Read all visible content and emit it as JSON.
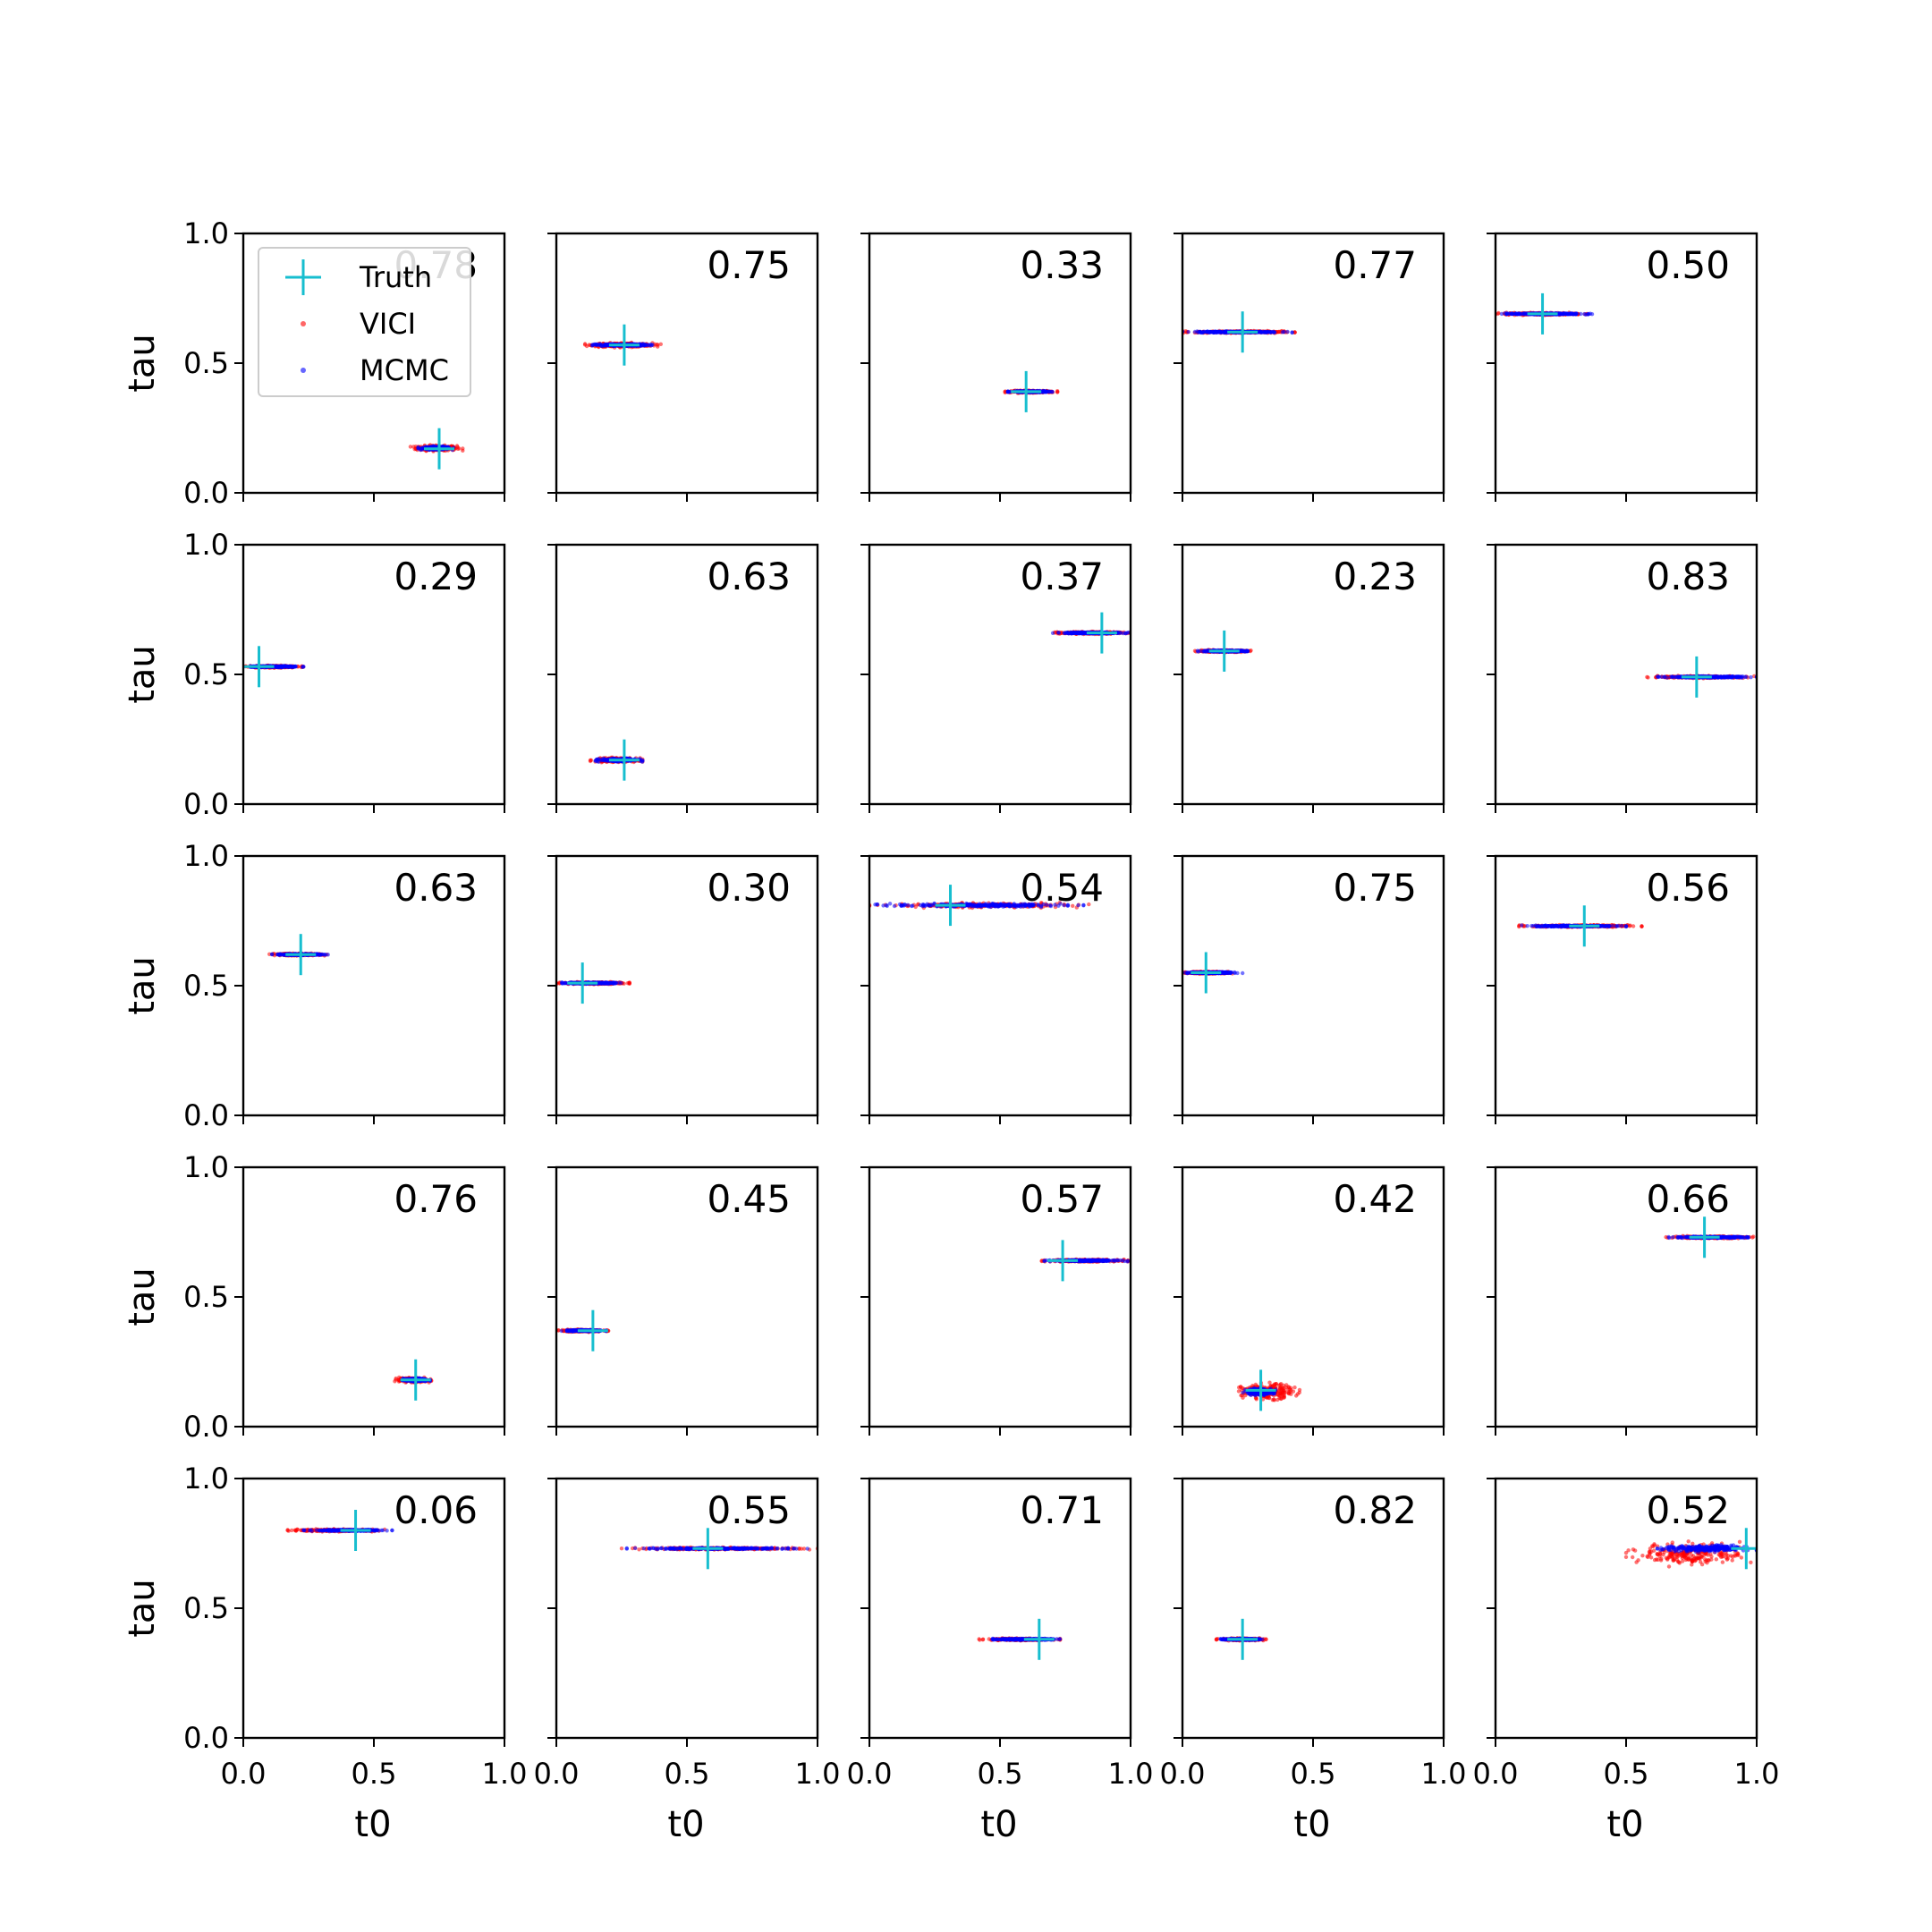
{
  "figure": {
    "xlabel": "t0",
    "ylabel": "tau",
    "xticks": [
      "0.0",
      "0.5",
      "1.0"
    ],
    "yticks": [
      "0.0",
      "0.5",
      "1.0"
    ],
    "xlim": [
      0,
      1
    ],
    "ylim": [
      0,
      1
    ]
  },
  "legend": {
    "placement": "upper-left of first panel",
    "entries": [
      {
        "label": "Truth",
        "marker": "plus",
        "color": "#17becf"
      },
      {
        "label": "VICI",
        "marker": "dot",
        "color": "#ff0000"
      },
      {
        "label": "MCMC",
        "marker": "dot",
        "color": "#0000ff"
      }
    ]
  },
  "colors": {
    "truth": "#17becf",
    "vici": "#ff0000",
    "mcmc": "#0000ff"
  },
  "chart_data": {
    "type": "scatter",
    "grid": "5x5 small multiples",
    "shared_axes": true,
    "xlabel": "t0",
    "ylabel": "tau",
    "xlim": [
      0,
      1
    ],
    "ylim": [
      0,
      1
    ],
    "grid_lines": false,
    "series_names": [
      "Truth",
      "VICI",
      "MCMC"
    ],
    "panels": [
      {
        "annotation": "0.78",
        "truth": [
          0.75,
          0.17
        ],
        "vici": {
          "x": [
            0.64,
            0.84
          ],
          "y": [
            0.16,
            0.185
          ]
        },
        "mcmc": {
          "x": [
            0.67,
            0.81
          ],
          "y": [
            0.165,
            0.18
          ]
        }
      },
      {
        "annotation": "0.75",
        "truth": [
          0.26,
          0.57
        ],
        "vici": {
          "x": [
            0.11,
            0.4
          ],
          "y": [
            0.56,
            0.58
          ]
        },
        "mcmc": {
          "x": [
            0.12,
            0.38
          ],
          "y": [
            0.565,
            0.575
          ]
        }
      },
      {
        "annotation": "0.33",
        "truth": [
          0.6,
          0.39
        ],
        "vici": {
          "x": [
            0.52,
            0.72
          ],
          "y": [
            0.385,
            0.395
          ]
        },
        "mcmc": {
          "x": [
            0.53,
            0.7
          ],
          "y": [
            0.387,
            0.393
          ]
        }
      },
      {
        "annotation": "0.77",
        "truth": [
          0.23,
          0.62
        ],
        "vici": {
          "x": [
            0.0,
            0.43
          ],
          "y": [
            0.615,
            0.625
          ]
        },
        "mcmc": {
          "x": [
            0.0,
            0.42
          ],
          "y": [
            0.617,
            0.623
          ]
        }
      },
      {
        "annotation": "0.50",
        "truth": [
          0.18,
          0.69
        ],
        "vici": {
          "x": [
            0.0,
            0.35
          ],
          "y": [
            0.685,
            0.695
          ]
        },
        "mcmc": {
          "x": [
            0.0,
            0.37
          ],
          "y": [
            0.687,
            0.693
          ]
        }
      },
      {
        "annotation": "0.29",
        "truth": [
          0.06,
          0.53
        ],
        "vici": {
          "x": [
            0.0,
            0.23
          ],
          "y": [
            0.525,
            0.535
          ]
        },
        "mcmc": {
          "x": [
            0.0,
            0.24
          ],
          "y": [
            0.527,
            0.533
          ]
        }
      },
      {
        "annotation": "0.63",
        "truth": [
          0.26,
          0.17
        ],
        "vici": {
          "x": [
            0.13,
            0.33
          ],
          "y": [
            0.16,
            0.18
          ]
        },
        "mcmc": {
          "x": [
            0.15,
            0.33
          ],
          "y": [
            0.163,
            0.177
          ]
        }
      },
      {
        "annotation": "0.37",
        "truth": [
          0.89,
          0.66
        ],
        "vici": {
          "x": [
            0.69,
            1.0
          ],
          "y": [
            0.655,
            0.665
          ]
        },
        "mcmc": {
          "x": [
            0.7,
            1.0
          ],
          "y": [
            0.657,
            0.663
          ]
        }
      },
      {
        "annotation": "0.23",
        "truth": [
          0.16,
          0.59
        ],
        "vici": {
          "x": [
            0.04,
            0.27
          ],
          "y": [
            0.585,
            0.595
          ]
        },
        "mcmc": {
          "x": [
            0.05,
            0.27
          ],
          "y": [
            0.587,
            0.593
          ]
        }
      },
      {
        "annotation": "0.83",
        "truth": [
          0.77,
          0.49
        ],
        "vici": {
          "x": [
            0.58,
            1.0
          ],
          "y": [
            0.485,
            0.495
          ]
        },
        "mcmc": {
          "x": [
            0.62,
            1.0
          ],
          "y": [
            0.487,
            0.493
          ]
        }
      },
      {
        "annotation": "0.63",
        "truth": [
          0.22,
          0.62
        ],
        "vici": {
          "x": [
            0.1,
            0.32
          ],
          "y": [
            0.615,
            0.625
          ]
        },
        "mcmc": {
          "x": [
            0.11,
            0.33
          ],
          "y": [
            0.617,
            0.623
          ]
        }
      },
      {
        "annotation": "0.30",
        "truth": [
          0.1,
          0.51
        ],
        "vici": {
          "x": [
            0.0,
            0.28
          ],
          "y": [
            0.505,
            0.515
          ]
        },
        "mcmc": {
          "x": [
            0.01,
            0.25
          ],
          "y": [
            0.507,
            0.513
          ]
        }
      },
      {
        "annotation": "0.54",
        "truth": [
          0.31,
          0.81
        ],
        "vici": {
          "x": [
            0.0,
            0.84
          ],
          "y": [
            0.8,
            0.82
          ]
        },
        "mcmc": {
          "x": [
            0.0,
            0.82
          ],
          "y": [
            0.803,
            0.817
          ]
        }
      },
      {
        "annotation": "0.75",
        "truth": [
          0.09,
          0.55
        ],
        "vici": {
          "x": [
            0.0,
            0.2
          ],
          "y": [
            0.545,
            0.555
          ]
        },
        "mcmc": {
          "x": [
            0.0,
            0.23
          ],
          "y": [
            0.547,
            0.553
          ]
        }
      },
      {
        "annotation": "0.56",
        "truth": [
          0.34,
          0.73
        ],
        "vici": {
          "x": [
            0.09,
            0.56
          ],
          "y": [
            0.725,
            0.735
          ]
        },
        "mcmc": {
          "x": [
            0.1,
            0.5
          ],
          "y": [
            0.727,
            0.733
          ]
        }
      },
      {
        "annotation": "0.76",
        "truth": [
          0.66,
          0.18
        ],
        "vici": {
          "x": [
            0.58,
            0.72
          ],
          "y": [
            0.17,
            0.19
          ]
        },
        "mcmc": {
          "x": [
            0.6,
            0.72
          ],
          "y": [
            0.173,
            0.187
          ]
        }
      },
      {
        "annotation": "0.45",
        "truth": [
          0.14,
          0.37
        ],
        "vici": {
          "x": [
            0.0,
            0.2
          ],
          "y": [
            0.365,
            0.375
          ]
        },
        "mcmc": {
          "x": [
            0.02,
            0.2
          ],
          "y": [
            0.367,
            0.373
          ]
        }
      },
      {
        "annotation": "0.57",
        "truth": [
          0.74,
          0.64
        ],
        "vici": {
          "x": [
            0.66,
            0.99
          ],
          "y": [
            0.635,
            0.645
          ]
        },
        "mcmc": {
          "x": [
            0.67,
            0.99
          ],
          "y": [
            0.637,
            0.643
          ]
        }
      },
      {
        "annotation": "0.42",
        "truth": [
          0.3,
          0.14
        ],
        "vici": {
          "x": [
            0.2,
            0.45
          ],
          "y": [
            0.1,
            0.17
          ]
        },
        "mcmc": {
          "x": [
            0.23,
            0.36
          ],
          "y": [
            0.12,
            0.15
          ]
        }
      },
      {
        "annotation": "0.66",
        "truth": [
          0.8,
          0.73
        ],
        "vici": {
          "x": [
            0.64,
            1.0
          ],
          "y": [
            0.725,
            0.735
          ]
        },
        "mcmc": {
          "x": [
            0.65,
            1.0
          ],
          "y": [
            0.727,
            0.733
          ]
        }
      },
      {
        "annotation": "0.06",
        "truth": [
          0.43,
          0.8
        ],
        "vici": {
          "x": [
            0.17,
            0.55
          ],
          "y": [
            0.795,
            0.805
          ]
        },
        "mcmc": {
          "x": [
            0.23,
            0.57
          ],
          "y": [
            0.797,
            0.803
          ]
        }
      },
      {
        "annotation": "0.55",
        "truth": [
          0.58,
          0.73
        ],
        "vici": {
          "x": [
            0.25,
            1.0
          ],
          "y": [
            0.725,
            0.735
          ]
        },
        "mcmc": {
          "x": [
            0.27,
            0.98
          ],
          "y": [
            0.727,
            0.733
          ]
        }
      },
      {
        "annotation": "0.71",
        "truth": [
          0.65,
          0.38
        ],
        "vici": {
          "x": [
            0.42,
            0.73
          ],
          "y": [
            0.375,
            0.385
          ]
        },
        "mcmc": {
          "x": [
            0.46,
            0.73
          ],
          "y": [
            0.377,
            0.383
          ]
        }
      },
      {
        "annotation": "0.82",
        "truth": [
          0.23,
          0.38
        ],
        "vici": {
          "x": [
            0.13,
            0.32
          ],
          "y": [
            0.375,
            0.385
          ]
        },
        "mcmc": {
          "x": [
            0.14,
            0.31
          ],
          "y": [
            0.377,
            0.383
          ]
        }
      },
      {
        "annotation": "0.52",
        "truth": [
          0.96,
          0.73
        ],
        "vici": {
          "x": [
            0.5,
            1.0
          ],
          "y": [
            0.66,
            0.76
          ]
        },
        "mcmc": {
          "x": [
            0.6,
            1.0
          ],
          "y": [
            0.715,
            0.745
          ]
        }
      }
    ]
  }
}
